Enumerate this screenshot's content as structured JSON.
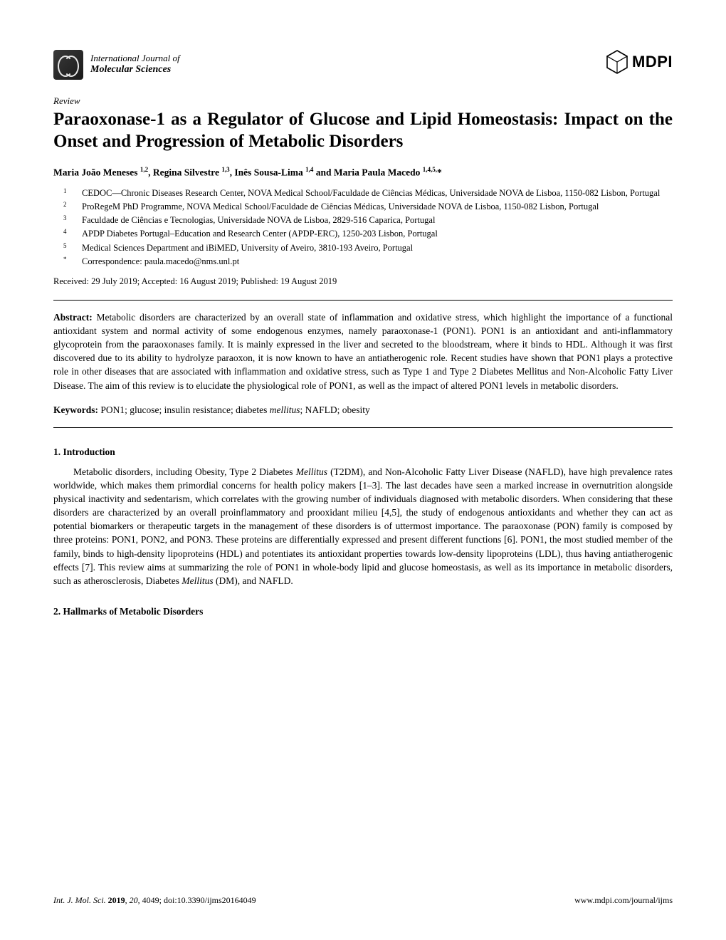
{
  "journal": {
    "line1": "International Journal of",
    "line2": "Molecular Sciences"
  },
  "publisher": "MDPI",
  "article_type": "Review",
  "title": "Paraoxonase-1 as a Regulator of Glucose and Lipid Homeostasis: Impact on the Onset and Progression of Metabolic Disorders",
  "authors_html": "Maria João Meneses <sup>1,2</sup>, Regina Silvestre <sup>1,3</sup>, Inês Sousa-Lima <sup>1,4</sup> and Maria Paula Macedo <sup>1,4,5,</sup>*",
  "affiliations": [
    {
      "marker": "1",
      "text": "CEDOC—Chronic Diseases Research Center, NOVA Medical School/Faculdade de Ciências Médicas, Universidade NOVA de Lisboa, 1150-082 Lisbon, Portugal"
    },
    {
      "marker": "2",
      "text": "ProRegeM PhD Programme, NOVA Medical School/Faculdade de Ciências Médicas, Universidade NOVA de Lisboa, 1150-082 Lisbon, Portugal"
    },
    {
      "marker": "3",
      "text": "Faculdade de Ciências e Tecnologias, Universidade NOVA de Lisboa, 2829-516 Caparica, Portugal"
    },
    {
      "marker": "4",
      "text": "APDP Diabetes Portugal–Education and Research Center (APDP-ERC), 1250-203 Lisbon, Portugal"
    },
    {
      "marker": "5",
      "text": "Medical Sciences Department and iBiMED, University of Aveiro, 3810-193 Aveiro, Portugal"
    },
    {
      "marker": "*",
      "text": "Correspondence: paula.macedo@nms.unl.pt"
    }
  ],
  "dates": "Received: 29 July 2019; Accepted: 16 August 2019; Published: 19 August 2019",
  "abstract_label": "Abstract:",
  "abstract_body": " Metabolic disorders are characterized by an overall state of inflammation and oxidative stress, which highlight the importance of a functional antioxidant system and normal activity of some endogenous enzymes, namely paraoxonase-1 (PON1). PON1 is an antioxidant and anti-inflammatory glycoprotein from the paraoxonases family. It is mainly expressed in the liver and secreted to the bloodstream, where it binds to HDL. Although it was first discovered due to its ability to hydrolyze paraoxon, it is now known to have an antiatherogenic role. Recent studies have shown that PON1 plays a protective role in other diseases that are associated with inflammation and oxidative stress, such as Type 1 and Type 2 Diabetes Mellitus and Non-Alcoholic Fatty Liver Disease. The aim of this review is to elucidate the physiological role of PON1, as well as the impact of altered PON1 levels in metabolic disorders.",
  "keywords_label": "Keywords:",
  "keywords_html": " PON1; glucose; insulin resistance; diabetes <i>mellitus</i>; NAFLD; obesity",
  "sections": {
    "intro_heading": "1. Introduction",
    "intro_para_html": "Metabolic disorders, including Obesity, Type 2 Diabetes <i>Mellitus</i> (T2DM), and Non-Alcoholic Fatty Liver Disease (NAFLD), have high prevalence rates worldwide, which makes them primordial concerns for health policy makers [1–3]. The last decades have seen a marked increase in overnutrition alongside physical inactivity and sedentarism, which correlates with the growing number of individuals diagnosed with metabolic disorders. When considering that these disorders are characterized by an overall proinflammatory and prooxidant milieu [4,5], the study of endogenous antioxidants and whether they can act as potential biomarkers or therapeutic targets in the management of these disorders is of uttermost importance. The paraoxonase (PON) family is composed by three proteins: PON1, PON2, and PON3. These proteins are differentially expressed and present different functions [6]. PON1, the most studied member of the family, binds to high-density lipoproteins (HDL) and potentiates its antioxidant properties towards low-density lipoproteins (LDL), thus having antiatherogenic effects [7]. This review aims at summarizing the role of PON1 in whole-body lipid and glucose homeostasis, as well as its importance in metabolic disorders, such as atherosclerosis, Diabetes <i>Mellitus</i> (DM), and NAFLD.",
    "hallmarks_heading": "2. Hallmarks of Metabolic Disorders"
  },
  "footer": {
    "citation_html": "<i>Int. J. Mol. Sci.</i> <b>2019</b>, <i>20</i>, 4049; doi:10.3390/ijms20164049",
    "url": "www.mdpi.com/journal/ijms"
  },
  "colors": {
    "text": "#000000",
    "background": "#ffffff",
    "logo_box": "#2a2a2a",
    "rule": "#000000"
  },
  "typography": {
    "body_font": "Palatino / Book Antiqua, serif",
    "title_size_pt": 18,
    "body_size_pt": 10,
    "affil_size_pt": 9
  }
}
